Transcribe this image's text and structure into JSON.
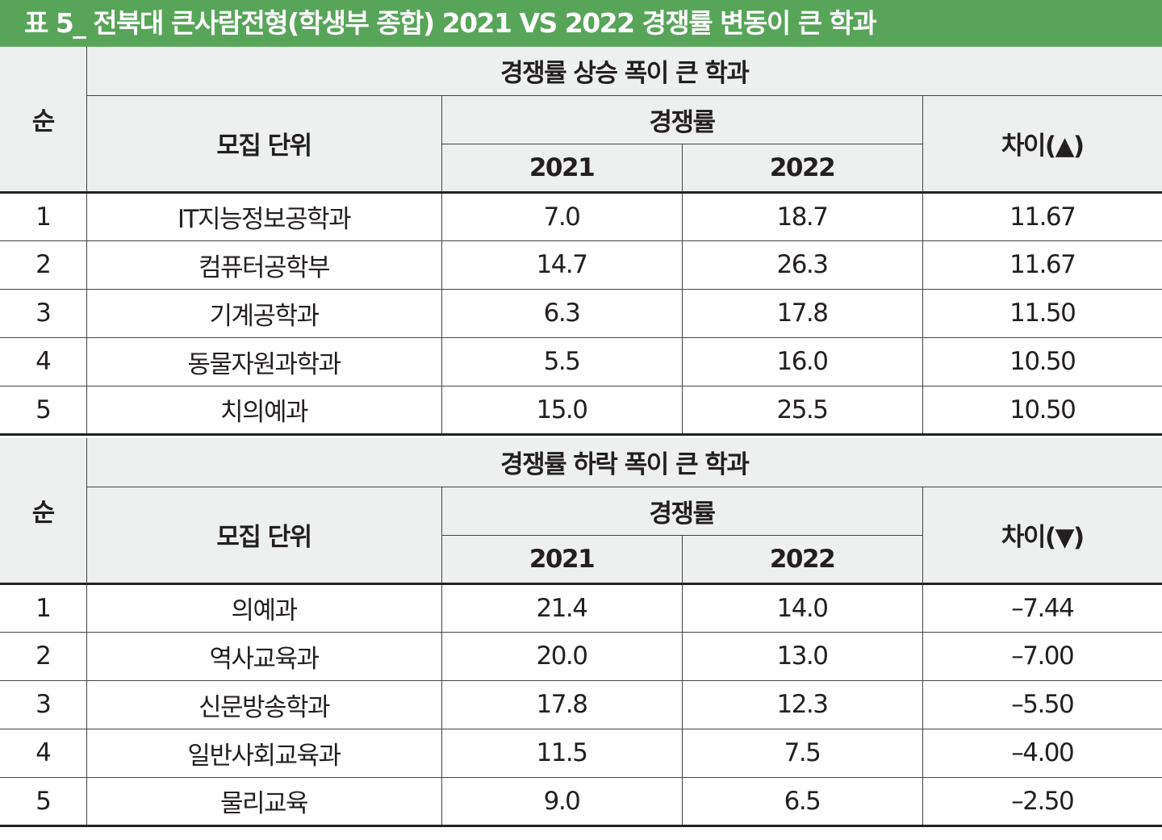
{
  "title": "표 5_ 전북대 큰사람전형(학생부 종합) 2021 VS 2022 경쟁률 변동이 큰 학과",
  "header_labels": {
    "rank": "순",
    "unit": "모집 단위",
    "rate": "경쟁률",
    "y2021": "2021",
    "y2022": "2022"
  },
  "sections": [
    {
      "caption": "경쟁률 상승 폭이 큰 학과",
      "diff_label": "차이(▲)",
      "rows": [
        {
          "rank": "1",
          "unit": "IT지능정보공학과",
          "y2021": "7.0",
          "y2022": "18.7",
          "diff": "11.67"
        },
        {
          "rank": "2",
          "unit": "컴퓨터공학부",
          "y2021": "14.7",
          "y2022": "26.3",
          "diff": "11.67"
        },
        {
          "rank": "3",
          "unit": "기계공학과",
          "y2021": "6.3",
          "y2022": "17.8",
          "diff": "11.50"
        },
        {
          "rank": "4",
          "unit": "동물자원과학과",
          "y2021": "5.5",
          "y2022": "16.0",
          "diff": "10.50"
        },
        {
          "rank": "5",
          "unit": "치의예과",
          "y2021": "15.0",
          "y2022": "25.5",
          "diff": "10.50"
        }
      ]
    },
    {
      "caption": "경쟁률 하락 폭이 큰 학과",
      "diff_label": "차이(▼)",
      "rows": [
        {
          "rank": "1",
          "unit": "의예과",
          "y2021": "21.4",
          "y2022": "14.0",
          "diff": "–7.44"
        },
        {
          "rank": "2",
          "unit": "역사교육과",
          "y2021": "20.0",
          "y2022": "13.0",
          "diff": "–7.00"
        },
        {
          "rank": "3",
          "unit": "신문방송학과",
          "y2021": "17.8",
          "y2022": "12.3",
          "diff": "–5.50"
        },
        {
          "rank": "4",
          "unit": "일반사회교육과",
          "y2021": "11.5",
          "y2022": "7.5",
          "diff": "–4.00"
        },
        {
          "rank": "5",
          "unit": "물리교육",
          "y2021": "9.0",
          "y2022": "6.5",
          "diff": "–2.50"
        }
      ]
    }
  ],
  "colors": {
    "title_bg": "#58a559",
    "header_bg": "#eeefef",
    "rule": "#222222"
  }
}
